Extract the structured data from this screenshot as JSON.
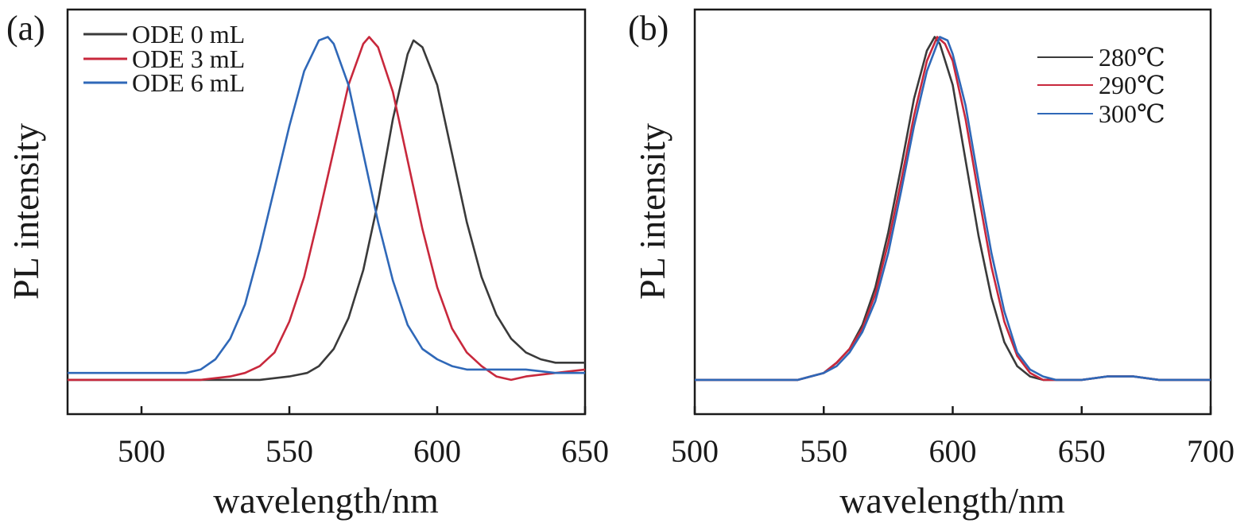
{
  "chart_data": [
    {
      "type": "line",
      "panel_label": "(a)",
      "xlabel": "wavelength/nm",
      "ylabel": "PL intensity",
      "xlim": [
        475,
        650
      ],
      "ylim": [
        -0.1,
        1.08
      ],
      "xticks": [
        500,
        550,
        600,
        650
      ],
      "legend_position": "top-left",
      "grid": false,
      "series": [
        {
          "name": "ODE 0 mL",
          "color": "#3a3a3a",
          "x": [
            475,
            500,
            520,
            540,
            550,
            556,
            560,
            565,
            570,
            575,
            580,
            585,
            590,
            592,
            595,
            600,
            605,
            610,
            615,
            620,
            625,
            630,
            635,
            640,
            645,
            650
          ],
          "y": [
            0.0,
            0.0,
            0.0,
            0.0,
            0.01,
            0.02,
            0.04,
            0.09,
            0.18,
            0.32,
            0.52,
            0.76,
            0.95,
            0.99,
            0.97,
            0.86,
            0.66,
            0.46,
            0.3,
            0.19,
            0.12,
            0.08,
            0.06,
            0.05,
            0.05,
            0.05
          ]
        },
        {
          "name": "ODE 3 mL",
          "color": "#c8283c",
          "x": [
            475,
            500,
            520,
            530,
            535,
            540,
            545,
            550,
            555,
            560,
            565,
            570,
            575,
            577,
            580,
            585,
            590,
            595,
            600,
            605,
            610,
            615,
            620,
            625,
            630,
            640,
            650
          ],
          "y": [
            0.0,
            0.0,
            0.0,
            0.01,
            0.02,
            0.04,
            0.08,
            0.17,
            0.3,
            0.48,
            0.67,
            0.86,
            0.98,
            1.0,
            0.97,
            0.84,
            0.64,
            0.44,
            0.27,
            0.15,
            0.08,
            0.04,
            0.01,
            0.0,
            0.01,
            0.02,
            0.03
          ]
        },
        {
          "name": "ODE 6 mL",
          "color": "#2f68b8",
          "x": [
            475,
            500,
            510,
            515,
            520,
            525,
            530,
            535,
            540,
            545,
            550,
            555,
            560,
            563,
            565,
            570,
            575,
            580,
            585,
            590,
            595,
            600,
            605,
            610,
            620,
            630,
            640,
            650
          ],
          "y": [
            0.02,
            0.02,
            0.02,
            0.02,
            0.03,
            0.06,
            0.12,
            0.22,
            0.38,
            0.56,
            0.74,
            0.9,
            0.99,
            1.0,
            0.98,
            0.86,
            0.66,
            0.46,
            0.29,
            0.16,
            0.09,
            0.06,
            0.04,
            0.03,
            0.03,
            0.03,
            0.02,
            0.02
          ]
        }
      ]
    },
    {
      "type": "line",
      "panel_label": "(b)",
      "xlabel": "wavelength/nm",
      "ylabel": "PL intensity",
      "xlim": [
        500,
        700
      ],
      "ylim": [
        -0.1,
        1.08
      ],
      "xticks": [
        500,
        550,
        600,
        650,
        700
      ],
      "legend_position": "top-right",
      "grid": false,
      "series": [
        {
          "name": "280℃",
          "color": "#3a3a3a",
          "x": [
            500,
            540,
            550,
            555,
            560,
            565,
            570,
            575,
            580,
            585,
            590,
            593,
            595,
            600,
            605,
            610,
            615,
            620,
            625,
            630,
            635,
            640,
            650,
            660,
            670,
            680,
            700
          ],
          "y": [
            0.0,
            0.0,
            0.02,
            0.05,
            0.09,
            0.16,
            0.27,
            0.43,
            0.62,
            0.82,
            0.96,
            1.0,
            0.98,
            0.86,
            0.64,
            0.42,
            0.24,
            0.11,
            0.04,
            0.01,
            0.0,
            0.0,
            0.0,
            0.01,
            0.01,
            0.0,
            0.0
          ]
        },
        {
          "name": "290℃",
          "color": "#c8283c",
          "x": [
            500,
            540,
            550,
            555,
            560,
            565,
            570,
            575,
            580,
            585,
            590,
            594,
            597,
            600,
            605,
            610,
            615,
            620,
            625,
            630,
            635,
            640,
            650,
            660,
            670,
            680,
            700
          ],
          "y": [
            0.0,
            0.0,
            0.02,
            0.05,
            0.09,
            0.15,
            0.25,
            0.4,
            0.58,
            0.77,
            0.93,
            1.0,
            0.98,
            0.93,
            0.76,
            0.54,
            0.33,
            0.17,
            0.07,
            0.02,
            0.0,
            0.0,
            0.0,
            0.01,
            0.01,
            0.0,
            0.0
          ]
        },
        {
          "name": "300℃",
          "color": "#2f68b8",
          "x": [
            500,
            540,
            550,
            555,
            560,
            565,
            570,
            575,
            580,
            585,
            590,
            595,
            598,
            600,
            605,
            610,
            615,
            620,
            625,
            630,
            635,
            640,
            650,
            660,
            670,
            680,
            700
          ],
          "y": [
            0.0,
            0.0,
            0.02,
            0.04,
            0.08,
            0.14,
            0.23,
            0.37,
            0.55,
            0.74,
            0.9,
            1.0,
            0.99,
            0.95,
            0.8,
            0.58,
            0.37,
            0.2,
            0.08,
            0.03,
            0.01,
            0.0,
            0.0,
            0.01,
            0.01,
            0.0,
            0.0
          ]
        }
      ]
    }
  ]
}
